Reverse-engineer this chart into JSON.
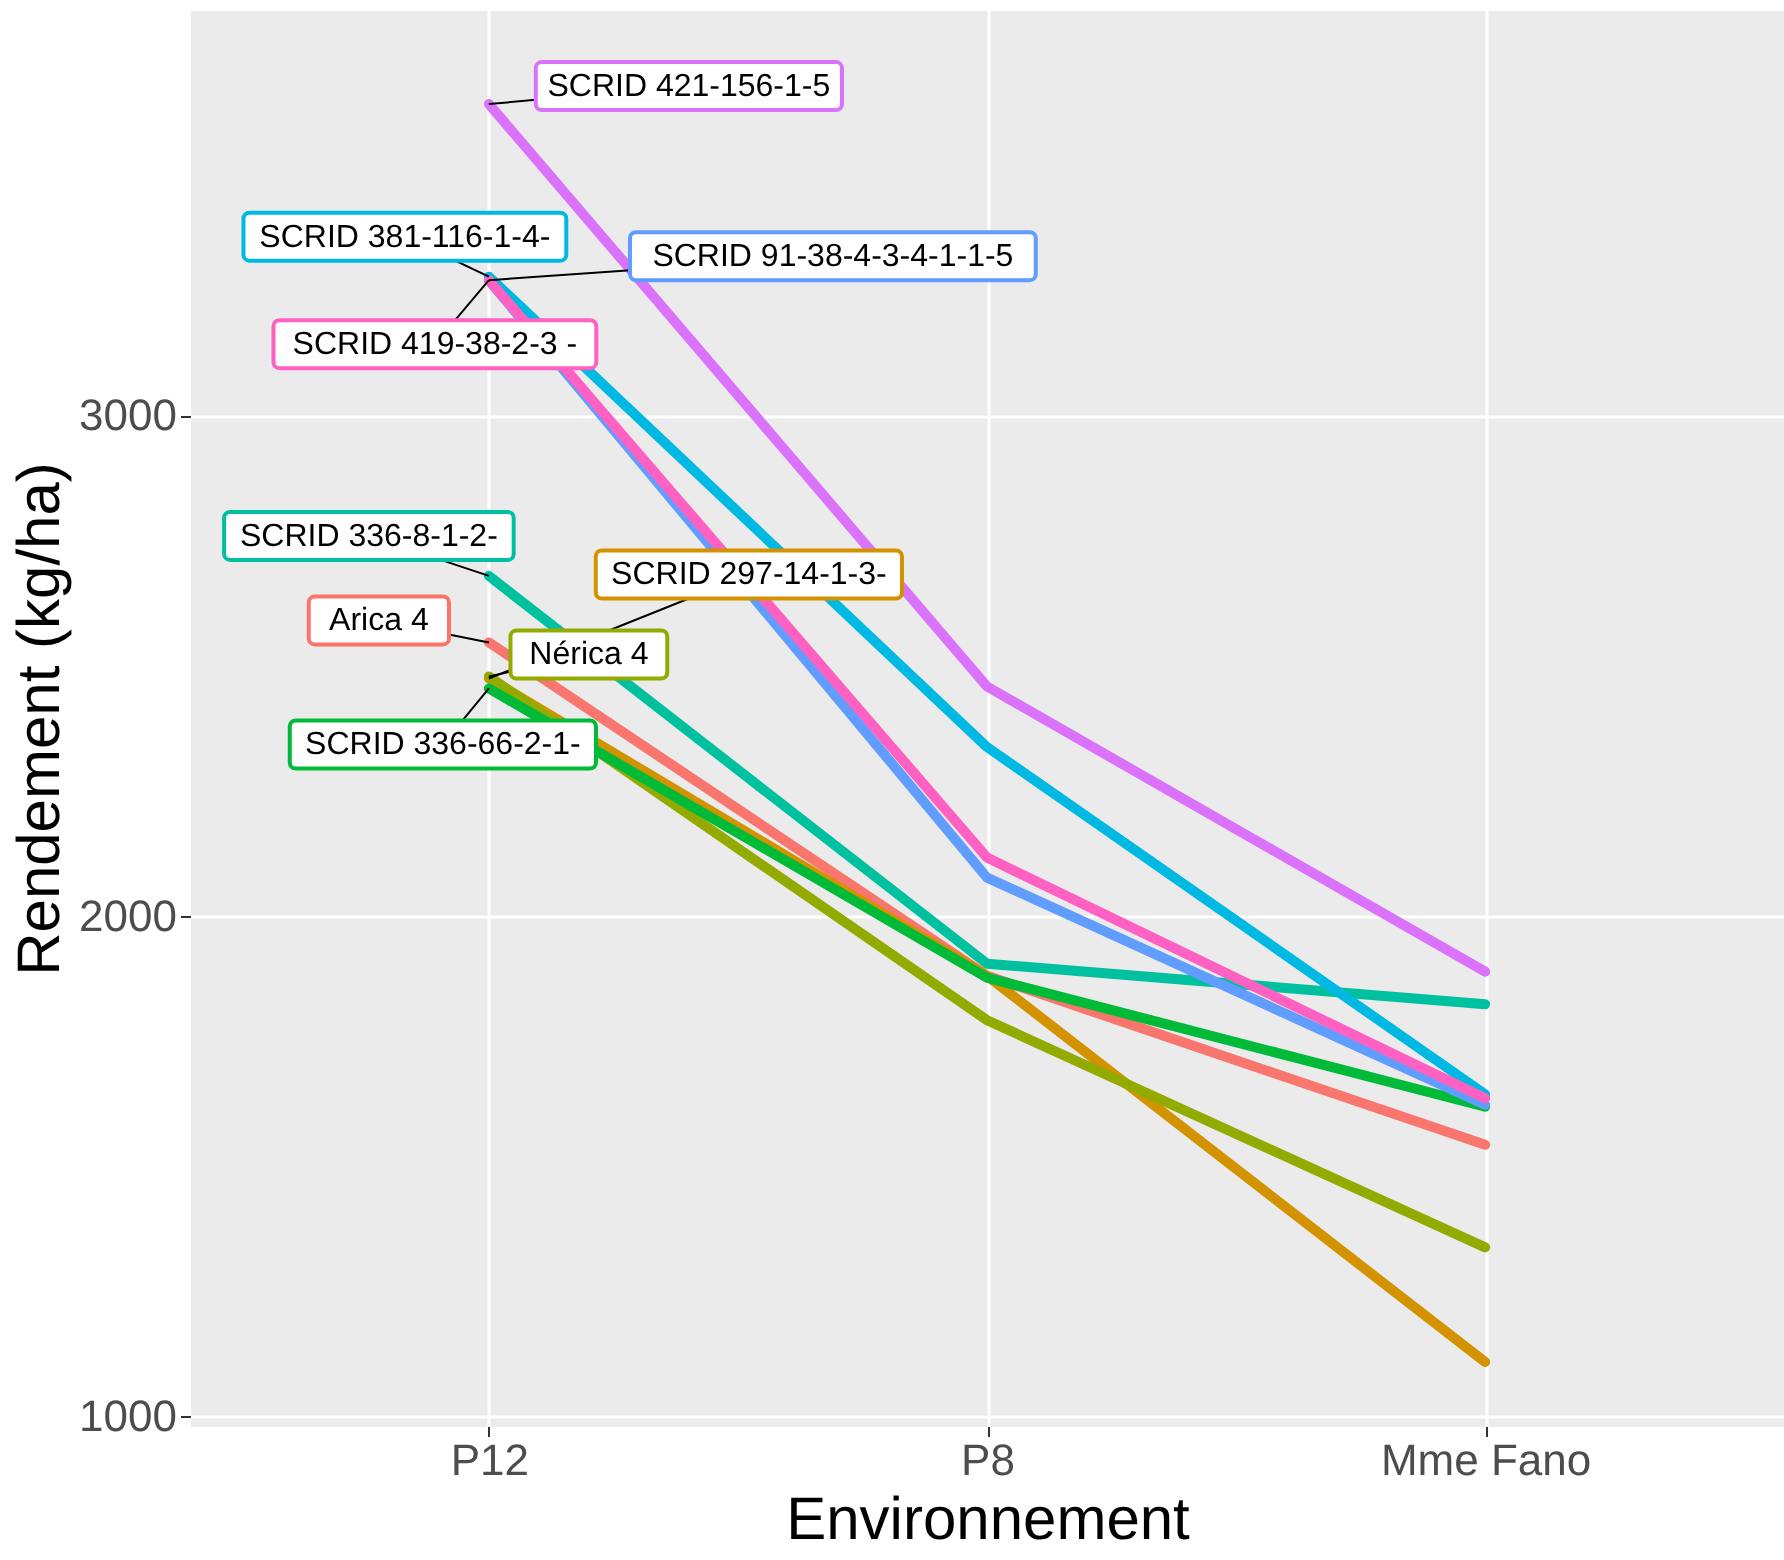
{
  "chart_data": {
    "type": "line",
    "xlabel": "Environnement",
    "ylabel": "Rendement (kg/ha)",
    "categories": [
      "P12",
      "P8",
      "Mme Fano"
    ],
    "series": [
      {
        "name": "Arica 4",
        "color": "#f8766d",
        "values": [
          2546,
          1880,
          1542
        ]
      },
      {
        "name": "SCRID 297-14-1-3-",
        "color": "#d39200",
        "values": [
          2474,
          1880,
          1108
        ]
      },
      {
        "name": "Nérica 4",
        "color": "#93aa00",
        "values": [
          2478,
          1791,
          1337
        ]
      },
      {
        "name": "SCRID 336-66-2-1-",
        "color": "#00ba38",
        "values": [
          2454,
          1876,
          1618
        ]
      },
      {
        "name": "SCRID 336-8-1-2-",
        "color": "#00c19f",
        "values": [
          2679,
          1904,
          1823
        ]
      },
      {
        "name": "SCRID 381-116-1-4-",
        "color": "#00b9e3",
        "values": [
          3277,
          2337,
          1643
        ]
      },
      {
        "name": "SCRID 91-38-4-3-4-1-1-5",
        "color": "#619cff",
        "values": [
          3270,
          2076,
          1622
        ]
      },
      {
        "name": "SCRID 421-156-1-5",
        "color": "#db72fb",
        "values": [
          3622,
          2458,
          1888
        ]
      },
      {
        "name": "SCRID 419-38-2-3 -",
        "color": "#ff61c3",
        "values": [
          3270,
          2116,
          1635
        ]
      }
    ],
    "ylim": [
      980,
      3810
    ],
    "yticks": [
      1000,
      2000,
      3000
    ],
    "grid": true,
    "legend": false
  }
}
